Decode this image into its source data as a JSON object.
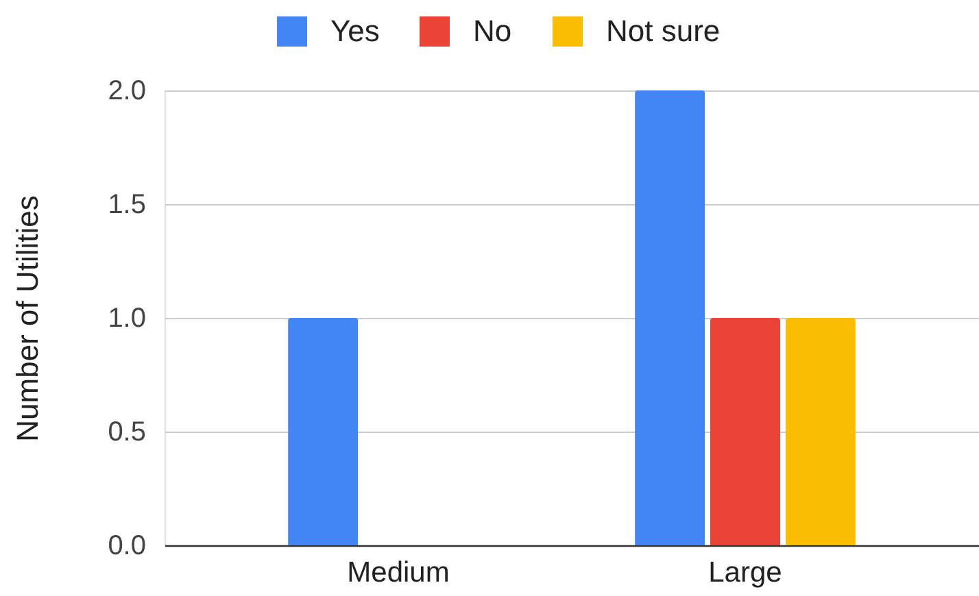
{
  "chart_data": {
    "type": "bar",
    "categories": [
      "Medium",
      "Large"
    ],
    "series": [
      {
        "name": "Yes",
        "color": "#4285f4",
        "values": [
          1,
          2
        ]
      },
      {
        "name": "No",
        "color": "#ea4335",
        "values": [
          null,
          1
        ]
      },
      {
        "name": "Not sure",
        "color": "#fbbc04",
        "values": [
          null,
          1
        ]
      }
    ],
    "ylabel": "Number of Utilities",
    "ylim": [
      0,
      2
    ],
    "yticks": [
      {
        "value": 0,
        "label": "0.0"
      },
      0.5,
      {
        "value": 1,
        "label": "1.0"
      },
      1.5,
      {
        "value": 2,
        "label": "2.0"
      }
    ],
    "grid": "y",
    "legend": "top"
  }
}
